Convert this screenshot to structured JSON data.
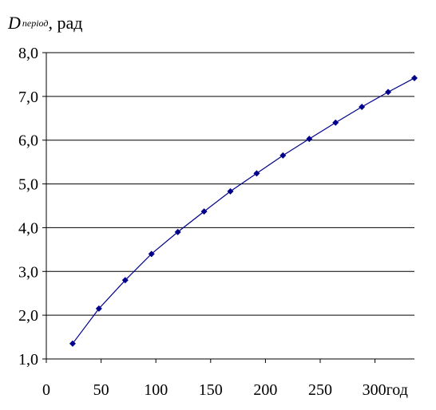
{
  "chart_data": {
    "type": "line",
    "y_axis_label": {
      "symbol": "D",
      "subscript": "період",
      "unit": ", рад"
    },
    "x_unit": "год",
    "x_ticks": [
      0,
      50,
      100,
      150,
      200,
      250,
      300
    ],
    "x_tick_labels": [
      "0",
      "50",
      "100",
      "150",
      "200",
      "250",
      "300"
    ],
    "xlim": [
      0,
      336
    ],
    "y_ticks": [
      1,
      2,
      3,
      4,
      5,
      6,
      7,
      8
    ],
    "y_tick_labels": [
      "1,0",
      "2,0",
      "3,0",
      "4,0",
      "5,0",
      "6,0",
      "7,0",
      "8,0"
    ],
    "ylim": [
      1,
      8
    ],
    "grid": "horizontal",
    "legend": "none",
    "series": [
      {
        "color": "#00008B",
        "marker": "diamond",
        "x": [
          24,
          48,
          72,
          96,
          120,
          144,
          168,
          192,
          216,
          240,
          264,
          288,
          312,
          336
        ],
        "y": [
          1.35,
          2.15,
          2.8,
          3.4,
          3.9,
          4.37,
          4.83,
          5.24,
          5.65,
          6.03,
          6.4,
          6.76,
          7.1,
          7.42
        ]
      }
    ]
  }
}
